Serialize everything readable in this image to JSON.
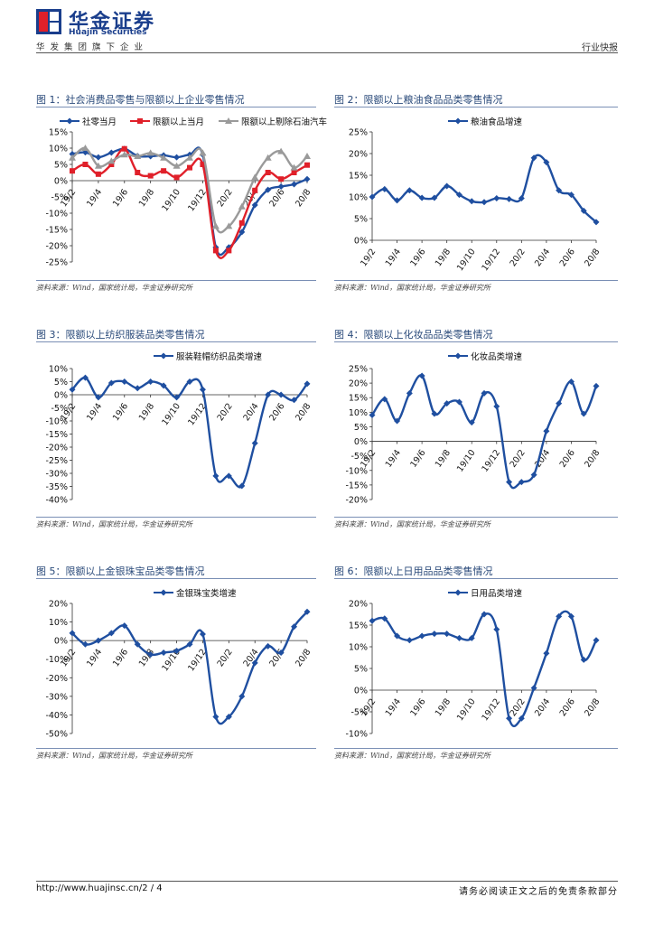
{
  "header": {
    "brand_name": "华金证券",
    "brand_en": "Huajin Securities",
    "group": "华发集团旗下企业",
    "report_type": "行业快报",
    "brand_color": "#1a3e8c"
  },
  "footer": {
    "url": "http://www.huajinsc.cn/2 / 4",
    "disclaimer": "请务必阅读正文之后的免责条款部分"
  },
  "figures": [
    {
      "title": "图 1：社会消费品零售与限额以上企业零售情况",
      "source": "资料来源：Wind，国家统计局，华金证券研究所"
    },
    {
      "title": "图 2：限额以上粮油食品品类零售情况",
      "source": "资料来源：Wind，国家统计局，华金证券研究所"
    },
    {
      "title": "图 3：限额以上纺织服装品类零售情况",
      "source": "资料来源：Wind，国家统计局，华金证券研究所"
    },
    {
      "title": "图 4：限额以上化妆品品类零售情况",
      "source": "资料来源：Wind，国家统计局，华金证券研究所"
    },
    {
      "title": "图 5：限额以上金银珠宝品类零售情况",
      "source": "资料来源：Wind，国家统计局，华金证券研究所"
    },
    {
      "title": "图 6：限额以上日用品品类零售情况",
      "source": "资料来源：Wind，国家统计局，华金证券研究所"
    }
  ],
  "chart_data": [
    {
      "type": "line",
      "x": [
        "19/2",
        "19/3",
        "19/4",
        "19/5",
        "19/6",
        "19/7",
        "19/8",
        "19/9",
        "19/10",
        "19/11",
        "19/12",
        "20/1",
        "20/2",
        "20/3",
        "20/4",
        "20/5",
        "20/6",
        "20/7",
        "20/8"
      ],
      "tick_labels": [
        "19/2",
        "19/4",
        "19/6",
        "19/8",
        "19/10",
        "19/12",
        "20/2",
        "20/4",
        "20/6",
        "20/8"
      ],
      "yticks": [
        "15%",
        "10%",
        "5%",
        "0%",
        "-5%",
        "-10%",
        "-15%",
        "-20%",
        "-25%"
      ],
      "ylim": [
        -25,
        15
      ],
      "legend": "top",
      "series": [
        {
          "name": "社零当月",
          "color": "#1f4fa0",
          "marker": "diamond",
          "values": [
            8.2,
            8.7,
            7.2,
            8.6,
            9.8,
            7.6,
            7.5,
            7.8,
            7.2,
            8.0,
            8.0,
            -20.5,
            -20.5,
            -15.8,
            -7.5,
            -2.8,
            -1.8,
            -1.1,
            0.5
          ]
        },
        {
          "name": "限额以上当月",
          "color": "#e0202a",
          "marker": "square",
          "values": [
            3.0,
            5.0,
            2.0,
            5.0,
            9.8,
            2.5,
            1.5,
            3.0,
            1.0,
            4.0,
            5.0,
            -21.5,
            -21.5,
            -13.0,
            -3.0,
            2.5,
            0.5,
            2.5,
            4.8
          ]
        },
        {
          "name": "限额以上剔除石油汽车",
          "color": "#9a9a9a",
          "marker": "triangle",
          "values": [
            7.0,
            10.0,
            4.5,
            6.0,
            8.0,
            7.5,
            8.5,
            7.0,
            4.5,
            7.0,
            8.5,
            -14.0,
            -14.0,
            -8.0,
            1.0,
            7.0,
            9.0,
            4.0,
            7.5
          ]
        }
      ]
    },
    {
      "type": "line",
      "x": [
        "19/2",
        "19/3",
        "19/4",
        "19/5",
        "19/6",
        "19/7",
        "19/8",
        "19/9",
        "19/10",
        "19/11",
        "19/12",
        "20/1",
        "20/2",
        "20/3",
        "20/4",
        "20/5",
        "20/6",
        "20/7",
        "20/8"
      ],
      "tick_labels": [
        "19/2",
        "19/4",
        "19/6",
        "19/8",
        "19/10",
        "19/12",
        "20/2",
        "20/4",
        "20/6",
        "20/8"
      ],
      "yticks": [
        "25%",
        "20%",
        "15%",
        "10%",
        "5%",
        "0%"
      ],
      "ylim": [
        0,
        25
      ],
      "legend": "top",
      "series": [
        {
          "name": "粮油食品增速",
          "color": "#1f4fa0",
          "marker": "diamond",
          "values": [
            10.0,
            11.8,
            9.2,
            11.5,
            9.8,
            9.8,
            12.5,
            10.5,
            9.0,
            8.8,
            9.7,
            9.5,
            9.7,
            19.0,
            18.0,
            11.5,
            10.5,
            6.8,
            4.2
          ]
        }
      ]
    },
    {
      "type": "line",
      "x": [
        "19/2",
        "19/3",
        "19/4",
        "19/5",
        "19/6",
        "19/7",
        "19/8",
        "19/9",
        "19/10",
        "19/11",
        "19/12",
        "20/1",
        "20/2",
        "20/3",
        "20/4",
        "20/5",
        "20/6",
        "20/7",
        "20/8"
      ],
      "tick_labels": [
        "19/2",
        "19/4",
        "19/6",
        "19/8",
        "19/10",
        "19/12",
        "20/2",
        "20/4",
        "20/6",
        "20/8"
      ],
      "yticks": [
        "10%",
        "5%",
        "0%",
        "-5%",
        "-10%",
        "-15%",
        "-20%",
        "-25%",
        "-30%",
        "-35%",
        "-40%"
      ],
      "ylim": [
        -40,
        10
      ],
      "legend": "top",
      "series": [
        {
          "name": "服装鞋帽纺织品类增速",
          "color": "#1f4fa0",
          "marker": "diamond",
          "values": [
            2.0,
            6.5,
            -1.0,
            4.5,
            5.0,
            2.5,
            5.0,
            3.5,
            -1.0,
            5.0,
            2.0,
            -31.0,
            -31.0,
            -34.8,
            -18.5,
            0.0,
            0.0,
            -2.0,
            4.2
          ]
        }
      ]
    },
    {
      "type": "line",
      "x": [
        "19/2",
        "19/3",
        "19/4",
        "19/5",
        "19/6",
        "19/7",
        "19/8",
        "19/9",
        "19/10",
        "19/11",
        "19/12",
        "20/1",
        "20/2",
        "20/3",
        "20/4",
        "20/5",
        "20/6",
        "20/7",
        "20/8"
      ],
      "tick_labels": [
        "19/2",
        "19/4",
        "19/6",
        "19/8",
        "19/10",
        "19/12",
        "20/2",
        "20/4",
        "20/6",
        "20/8"
      ],
      "yticks": [
        "25%",
        "20%",
        "15%",
        "10%",
        "5%",
        "0%",
        "-5%",
        "-10%",
        "-15%",
        "-20%"
      ],
      "ylim": [
        -20,
        25
      ],
      "legend": "top",
      "series": [
        {
          "name": "化妆品类增速",
          "color": "#1f4fa0",
          "marker": "diamond",
          "values": [
            9.0,
            14.5,
            7.0,
            16.5,
            22.5,
            9.5,
            13.0,
            13.5,
            6.5,
            16.5,
            12.0,
            -14.0,
            -14.0,
            -11.5,
            3.5,
            13.0,
            20.5,
            9.5,
            19.0
          ]
        }
      ]
    },
    {
      "type": "line",
      "x": [
        "19/2",
        "19/3",
        "19/4",
        "19/5",
        "19/6",
        "19/7",
        "19/8",
        "19/9",
        "19/10",
        "19/11",
        "19/12",
        "20/1",
        "20/2",
        "20/3",
        "20/4",
        "20/5",
        "20/6",
        "20/7",
        "20/8"
      ],
      "tick_labels": [
        "19/2",
        "19/4",
        "19/6",
        "19/8",
        "19/10",
        "19/12",
        "20/2",
        "20/4",
        "20/6",
        "20/8"
      ],
      "yticks": [
        "20%",
        "10%",
        "0%",
        "-10%",
        "-20%",
        "-30%",
        "-40%",
        "-50%"
      ],
      "ylim": [
        -50,
        20
      ],
      "legend": "top",
      "series": [
        {
          "name": "金银珠宝类增速",
          "color": "#1f4fa0",
          "marker": "diamond",
          "values": [
            4.0,
            -2.0,
            0.0,
            4.0,
            8.0,
            -2.0,
            -7.5,
            -6.5,
            -5.5,
            -2.0,
            3.5,
            -41.0,
            -41.0,
            -30.0,
            -12.0,
            -3.0,
            -6.5,
            7.5,
            15.5
          ]
        }
      ]
    },
    {
      "type": "line",
      "x": [
        "19/2",
        "19/3",
        "19/4",
        "19/5",
        "19/6",
        "19/7",
        "19/8",
        "19/9",
        "19/10",
        "19/11",
        "19/12",
        "20/1",
        "20/2",
        "20/3",
        "20/4",
        "20/5",
        "20/6",
        "20/7",
        "20/8"
      ],
      "tick_labels": [
        "19/2",
        "19/4",
        "19/6",
        "19/8",
        "19/10",
        "19/12",
        "20/2",
        "20/4",
        "20/6",
        "20/8"
      ],
      "yticks": [
        "20%",
        "15%",
        "10%",
        "5%",
        "0%",
        "-5%",
        "-10%"
      ],
      "ylim": [
        -10,
        20
      ],
      "legend": "top",
      "series": [
        {
          "name": "日用品类增速",
          "color": "#1f4fa0",
          "marker": "diamond",
          "values": [
            16.0,
            16.5,
            12.5,
            11.5,
            12.5,
            13.0,
            13.0,
            12.0,
            12.0,
            17.5,
            14.0,
            -6.5,
            -6.5,
            0.5,
            8.5,
            17.0,
            17.0,
            7.0,
            11.5
          ]
        }
      ]
    }
  ]
}
